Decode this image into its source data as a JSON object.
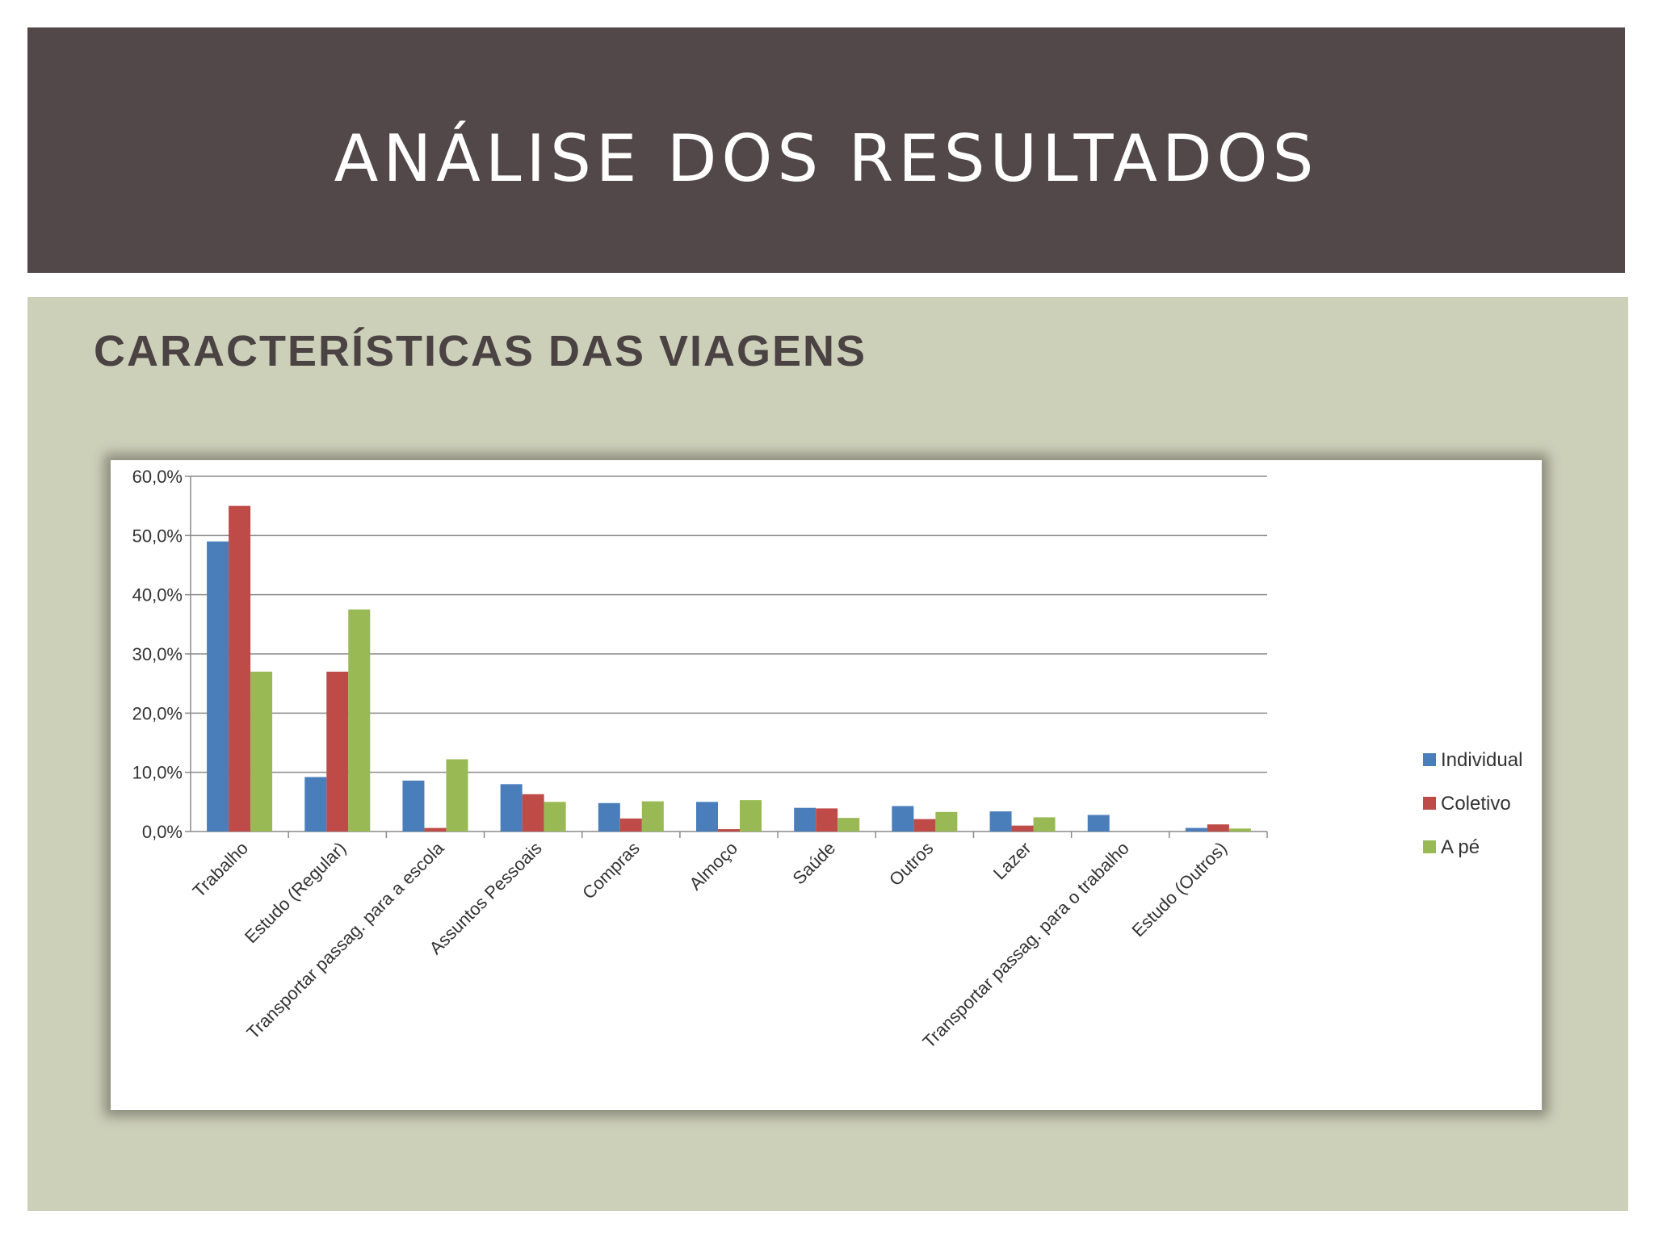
{
  "header": {
    "title": "ANÁLISE DOS RESULTADOS"
  },
  "section": {
    "subtitle": "CARACTERÍSTICAS DAS VIAGENS"
  },
  "chart_data": {
    "type": "bar",
    "title": "",
    "xlabel": "",
    "ylabel": "",
    "ylim": [
      0,
      60
    ],
    "yticks": [
      "0,0%",
      "10,0%",
      "20,0%",
      "30,0%",
      "40,0%",
      "50,0%",
      "60,0%"
    ],
    "grid": true,
    "legend_position": "right",
    "categories": [
      "Trabalho",
      "Estudo (Regular)",
      "Transportar passag. para a escola",
      "Assuntos Pessoais",
      "Compras",
      "Almoço",
      "Saúde",
      "Outros",
      "Lazer",
      "Transportar passag. para o trabalho",
      "Estudo (Outros)"
    ],
    "series": [
      {
        "name": "Individual",
        "color": "#4a7ebb",
        "values": [
          49.0,
          9.2,
          8.6,
          8.0,
          4.8,
          5.0,
          4.0,
          4.3,
          3.4,
          2.8,
          0.6
        ]
      },
      {
        "name": "Coletivo",
        "color": "#be4b48",
        "values": [
          55.0,
          27.0,
          0.6,
          6.3,
          2.2,
          0.4,
          3.9,
          2.1,
          1.0,
          0.0,
          1.2
        ]
      },
      {
        "name": "A pé",
        "color": "#98b954",
        "values": [
          27.0,
          37.5,
          12.2,
          5.0,
          5.1,
          5.3,
          2.3,
          3.3,
          2.4,
          0.0,
          0.5
        ]
      }
    ]
  }
}
